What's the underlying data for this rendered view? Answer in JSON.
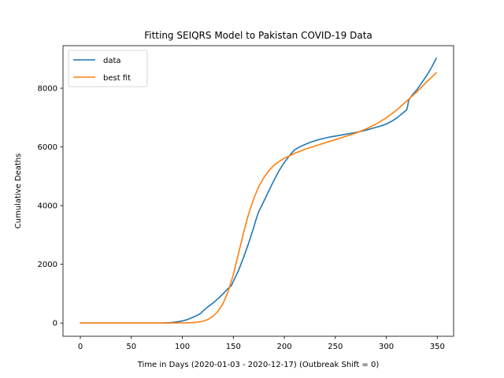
{
  "chart_data": {
    "type": "line",
    "title": "Fitting SEIQRS Model to Pakistan COVID-19 Data",
    "xlabel": "Time in Days (2020-01-03 - 2020-12-17) (Outbreak Shift = 0)",
    "ylabel": "Cumulative Deaths",
    "xlim": [
      -17,
      366
    ],
    "ylim": [
      -450,
      9450
    ],
    "xticks": [
      0,
      50,
      100,
      150,
      200,
      250,
      300,
      350
    ],
    "yticks": [
      0,
      2000,
      4000,
      6000,
      8000
    ],
    "grid": false,
    "legend_position": "top-left",
    "series": [
      {
        "name": "data",
        "color": "#1f77b4",
        "x": [
          0,
          60,
          80,
          90,
          95,
          100,
          105,
          110,
          115,
          118,
          120,
          125,
          130,
          135,
          140,
          145,
          148,
          150,
          155,
          160,
          165,
          170,
          172,
          175,
          180,
          185,
          190,
          195,
          200,
          205,
          210,
          215,
          220,
          225,
          230,
          235,
          240,
          245,
          250,
          255,
          260,
          265,
          270,
          275,
          280,
          285,
          290,
          295,
          300,
          305,
          310,
          315,
          320,
          321,
          322,
          325,
          330,
          335,
          340,
          345,
          349
        ],
        "y": [
          0,
          0,
          5,
          20,
          40,
          70,
          120,
          190,
          270,
          330,
          400,
          550,
          680,
          830,
          1000,
          1180,
          1270,
          1420,
          1780,
          2230,
          2720,
          3260,
          3500,
          3800,
          4150,
          4520,
          4870,
          5200,
          5470,
          5700,
          5900,
          6000,
          6080,
          6150,
          6210,
          6260,
          6300,
          6340,
          6370,
          6400,
          6430,
          6460,
          6490,
          6530,
          6570,
          6620,
          6670,
          6720,
          6780,
          6870,
          6980,
          7120,
          7260,
          7400,
          7600,
          7750,
          7950,
          8200,
          8450,
          8750,
          9020
        ]
      },
      {
        "name": "best fit",
        "color": "#ff7f0e",
        "x": [
          0,
          50,
          80,
          100,
          110,
          115,
          120,
          125,
          130,
          135,
          140,
          145,
          150,
          155,
          160,
          165,
          170,
          175,
          180,
          185,
          190,
          195,
          200,
          210,
          220,
          230,
          240,
          250,
          260,
          270,
          280,
          290,
          300,
          310,
          320,
          330,
          340,
          349
        ],
        "y": [
          0,
          0,
          0,
          5,
          15,
          30,
          60,
          120,
          230,
          400,
          670,
          1080,
          1650,
          2350,
          3070,
          3720,
          4240,
          4650,
          4960,
          5200,
          5380,
          5510,
          5610,
          5780,
          5920,
          6030,
          6140,
          6250,
          6360,
          6470,
          6610,
          6780,
          6990,
          7250,
          7560,
          7880,
          8230,
          8530
        ]
      }
    ]
  }
}
